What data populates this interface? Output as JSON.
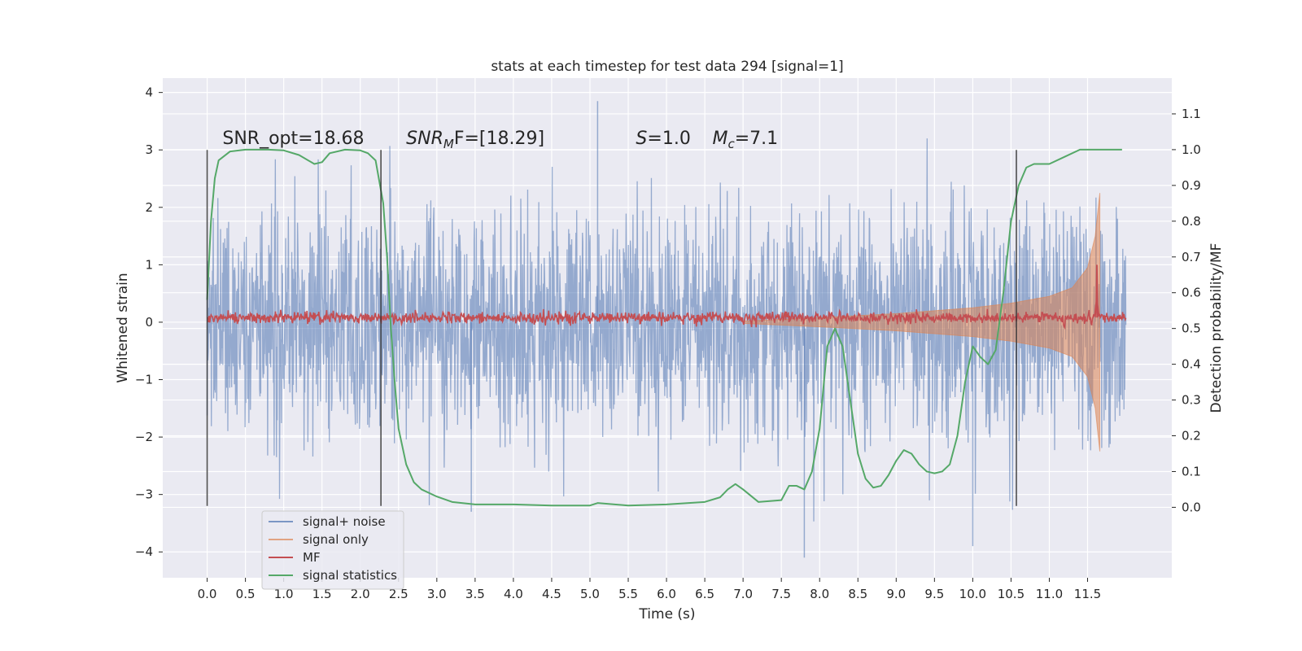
{
  "chart_data": {
    "type": "line",
    "title": "stats at each timestep for test data 294 [signal=1]",
    "xlabel": "Time (s)",
    "ylabel": "Whitened strain",
    "y2label": "Detection probability/MF",
    "xlim": [
      -0.58,
      12.6
    ],
    "ylim": [
      -4.45,
      4.25
    ],
    "y2lim": [
      -0.197,
      1.2
    ],
    "x_ticks": [
      0.0,
      0.5,
      1.0,
      1.5,
      2.0,
      2.5,
      3.0,
      3.5,
      4.0,
      4.5,
      5.0,
      5.5,
      6.0,
      6.5,
      7.0,
      7.5,
      8.0,
      8.5,
      9.0,
      9.5,
      10.0,
      10.5,
      11.0,
      11.5
    ],
    "x_tick_labels": [
      "0.0",
      "0.5",
      "1.0",
      "1.5",
      "2.0",
      "2.5",
      "3.0",
      "3.5",
      "4.0",
      "4.5",
      "5.0",
      "5.5",
      "6.0",
      "6.5",
      "7.0",
      "7.5",
      "8.0",
      "8.5",
      "9.0",
      "9.5",
      "10.0",
      "10.5",
      "11.0",
      "11.5"
    ],
    "y_ticks": [
      -4,
      -3,
      -2,
      -1,
      0,
      1,
      2,
      3,
      4
    ],
    "y_tick_labels": [
      "−4",
      "−3",
      "−2",
      "−1",
      "0",
      "1",
      "2",
      "3",
      "4"
    ],
    "y2_ticks": [
      0.0,
      0.1,
      0.2,
      0.3,
      0.4,
      0.5,
      0.6,
      0.7,
      0.8,
      0.9,
      1.0,
      1.1
    ],
    "y2_tick_labels": [
      "0.0",
      "0.1",
      "0.2",
      "0.3",
      "0.4",
      "0.5",
      "0.6",
      "0.7",
      "0.8",
      "0.9",
      "1.0",
      "1.1"
    ],
    "grid": true,
    "legend_position": "lower-left",
    "vertical_lines": [
      0.0,
      2.27,
      10.57
    ],
    "annotations": [
      {
        "id": "snr-opt",
        "text": "SNR_opt=18.68",
        "x": 0.2,
        "y": 3.1
      },
      {
        "id": "snr-mf",
        "text": "SNR",
        "sub": "M",
        "suffix": "F=[18.29]",
        "italic": true,
        "x": 2.6,
        "y": 3.1
      },
      {
        "id": "spin",
        "text": "S",
        "suffix": "=1.0",
        "italic": true,
        "x": 5.6,
        "y": 3.1
      },
      {
        "id": "chirp-mass",
        "text": "M",
        "sub": "c",
        "suffix": "=7.1",
        "italic": true,
        "x": 6.6,
        "y": 3.1
      }
    ],
    "series": [
      {
        "name": "signal+ noise",
        "color": "#4c72b0",
        "axis": "left",
        "x_range": [
          0.0,
          12.0
        ],
        "typical_amplitude": 1.1,
        "spike_extremes": {
          "max": 3.85,
          "min": -4.1
        }
      },
      {
        "name": "signal only",
        "color": "#dd8452",
        "axis": "left",
        "x_range": [
          7.0,
          11.66
        ],
        "envelope": {
          "x": [
            7.0,
            8.0,
            9.0,
            10.0,
            10.5,
            11.0,
            11.3,
            11.5,
            11.6,
            11.66
          ],
          "amplitude": [
            0.02,
            0.08,
            0.15,
            0.25,
            0.33,
            0.45,
            0.6,
            0.95,
            1.5,
            2.25
          ]
        }
      },
      {
        "name": "MF",
        "color": "#c44e52",
        "axis": "left",
        "x_range": [
          0.0,
          12.0
        ],
        "baseline": 0.08,
        "noise": 0.05,
        "peak": {
          "x": 11.62,
          "y": 1.0
        }
      },
      {
        "name": "signal statistics",
        "color": "#55a868",
        "axis": "right",
        "x": [
          0.0,
          0.05,
          0.1,
          0.15,
          0.3,
          0.5,
          0.8,
          1.0,
          1.2,
          1.4,
          1.5,
          1.6,
          1.8,
          2.0,
          2.1,
          2.2,
          2.3,
          2.35,
          2.4,
          2.45,
          2.5,
          2.6,
          2.7,
          2.8,
          3.0,
          3.2,
          3.5,
          4.0,
          4.5,
          5.0,
          5.1,
          5.5,
          6.0,
          6.5,
          6.7,
          6.8,
          6.9,
          7.0,
          7.2,
          7.5,
          7.6,
          7.7,
          7.8,
          7.9,
          8.0,
          8.1,
          8.2,
          8.3,
          8.4,
          8.5,
          8.6,
          8.7,
          8.8,
          8.9,
          9.0,
          9.1,
          9.2,
          9.3,
          9.4,
          9.5,
          9.6,
          9.7,
          9.8,
          9.9,
          10.0,
          10.1,
          10.2,
          10.3,
          10.4,
          10.5,
          10.6,
          10.7,
          10.8,
          11.0,
          11.2,
          11.4,
          11.6,
          11.8,
          11.95
        ],
        "y": [
          0.58,
          0.8,
          0.92,
          0.97,
          0.995,
          1.0,
          1.0,
          0.998,
          0.985,
          0.96,
          0.965,
          0.99,
          1.0,
          0.998,
          0.99,
          0.97,
          0.85,
          0.7,
          0.5,
          0.35,
          0.22,
          0.12,
          0.07,
          0.05,
          0.03,
          0.015,
          0.008,
          0.008,
          0.005,
          0.005,
          0.012,
          0.005,
          0.008,
          0.015,
          0.028,
          0.05,
          0.065,
          0.05,
          0.015,
          0.02,
          0.06,
          0.06,
          0.05,
          0.1,
          0.22,
          0.45,
          0.5,
          0.45,
          0.3,
          0.15,
          0.08,
          0.055,
          0.06,
          0.09,
          0.13,
          0.16,
          0.15,
          0.12,
          0.1,
          0.095,
          0.1,
          0.12,
          0.2,
          0.35,
          0.45,
          0.42,
          0.4,
          0.44,
          0.6,
          0.8,
          0.9,
          0.95,
          0.96,
          0.96,
          0.98,
          1.0,
          1.0,
          1.0,
          1.0
        ]
      }
    ]
  }
}
